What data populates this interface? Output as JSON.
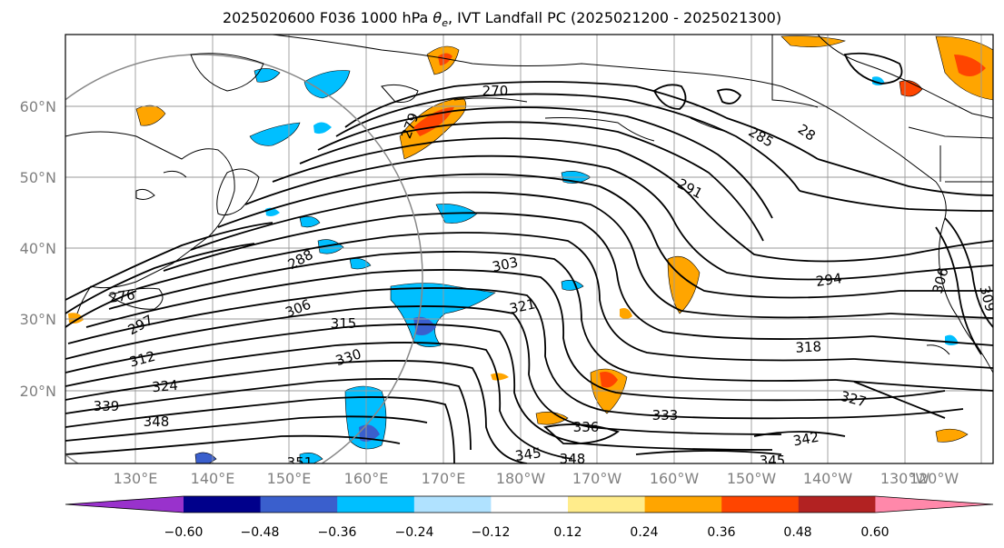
{
  "title": {
    "prefix": "2025020600 F036 1000 hPa ",
    "theta": "θ",
    "theta_sub": "e",
    "suffix": ", IVT Landfall PC (2025021200 - 2025021300)"
  },
  "lat_labels": [
    {
      "label": "60°N",
      "lat": 60
    },
    {
      "label": "50°N",
      "lat": 50
    },
    {
      "label": "40°N",
      "lat": 40
    },
    {
      "label": "30°N",
      "lat": 30
    },
    {
      "label": "20°N",
      "lat": 20
    }
  ],
  "lon_labels": [
    "130°E",
    "140°E",
    "150°E",
    "160°E",
    "170°E",
    "180°W",
    "170°W",
    "160°W",
    "150°W",
    "140°W",
    "130°W",
    "120°W"
  ],
  "contour_labels": [
    "270",
    "279",
    "285",
    "28",
    "291",
    "288",
    "294",
    "303",
    "306",
    "276",
    "297",
    "315",
    "321",
    "312",
    "330",
    "318",
    "324",
    "327",
    "339",
    "348",
    "336",
    "333",
    "342",
    "345",
    "348",
    "345",
    "351",
    "306",
    "309"
  ],
  "colorbar": {
    "ticks": [
      "−0.60",
      "−0.48",
      "−0.36",
      "−0.24",
      "−0.12",
      "0.12",
      "0.24",
      "0.36",
      "0.48",
      "0.60"
    ],
    "colors": [
      "#9932cc",
      "#00008b",
      "#3a5fcd",
      "#00bfff",
      "#b0e2ff",
      "#ffffff",
      "#ffec8b",
      "#ffa500",
      "#ff4500",
      "#b22222",
      "#ff88aa"
    ]
  },
  "colors": {
    "contour": "#000000",
    "coast": "#000000",
    "grid": "#999999",
    "circle": "#888888"
  }
}
